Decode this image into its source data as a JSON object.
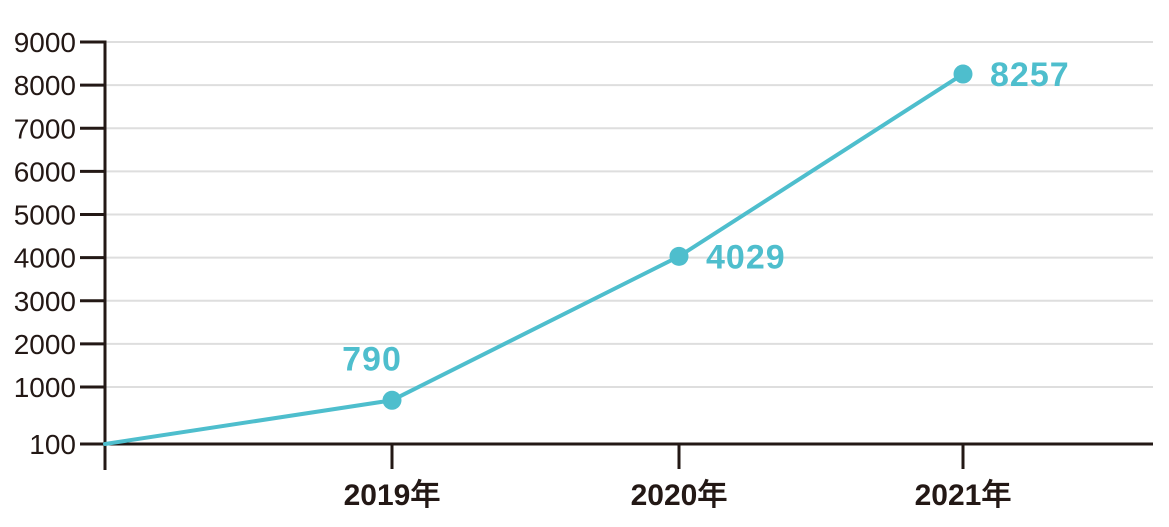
{
  "chart_data": {
    "type": "line",
    "title": "",
    "categories": [
      "2019年",
      "2020年",
      "2021年"
    ],
    "series": [
      {
        "name": "value",
        "values": [
          790,
          4029,
          8257
        ]
      }
    ],
    "value_labels": [
      "790",
      "4029",
      "8257"
    ],
    "value_label_positions": [
      "above",
      "right",
      "right"
    ],
    "y_axis": {
      "tick_labels": [
        "9000",
        "8000",
        "7000",
        "6000",
        "5000",
        "4000",
        "3000",
        "2000",
        "1000",
        "100"
      ],
      "tick_values": [
        9000,
        8000,
        7000,
        6000,
        5000,
        4000,
        3000,
        2000,
        1000,
        100
      ],
      "min": 100,
      "max": 9000
    },
    "x_axis": {
      "tick_labels": [
        "2019年",
        "2020年",
        "2021年"
      ]
    },
    "line_starts_at_axis_origin": true,
    "origin_value": 100,
    "grid": true,
    "legend": false,
    "colors": {
      "line": "#4EBECD",
      "marker": "#4EBECD",
      "value_label": "#4EBECD",
      "axis": "#231815",
      "axis_label": "#231815",
      "grid": "#DEDEDE",
      "background": "#FFFFFF"
    }
  }
}
